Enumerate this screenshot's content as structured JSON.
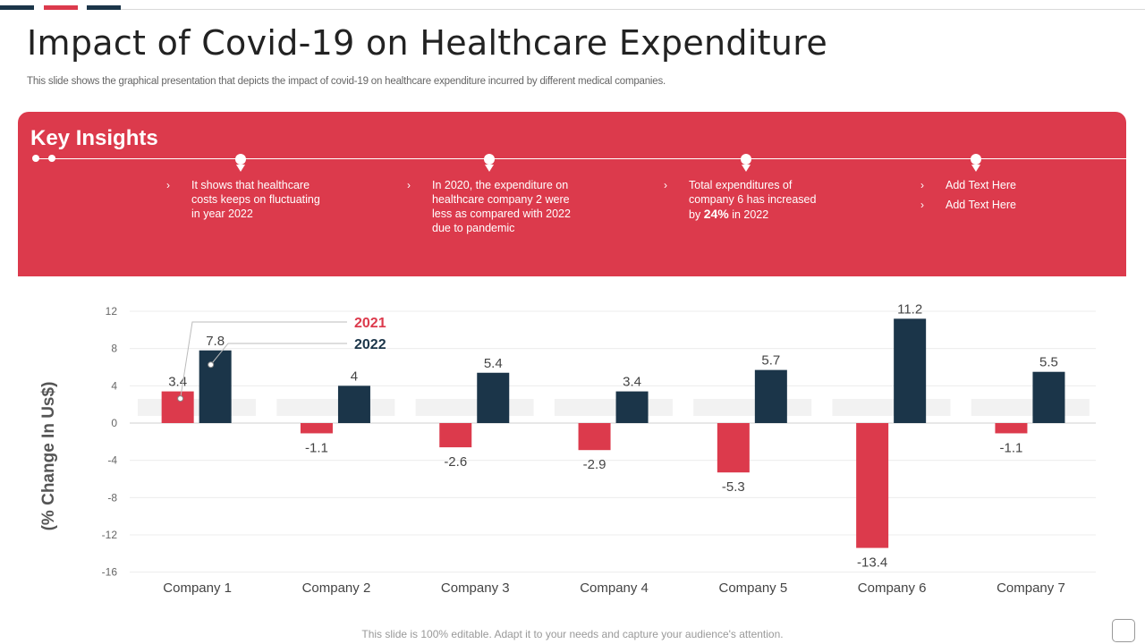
{
  "title": "Impact of Covid-19 on Healthcare Expenditure",
  "subtitle": "This slide shows the graphical presentation that depicts the impact of covid-19 on healthcare expenditure incurred by different medical companies.",
  "colors": {
    "red": "#dc3a4c",
    "navy": "#1b3549",
    "light_gray": "#f2f2f2"
  },
  "insights": {
    "heading": "Key Insights",
    "col1": {
      "text": "It shows that healthcare costs keeps on fluctuating in year 2022"
    },
    "col2": {
      "text": "In 2020, the expenditure on healthcare company 2 were less as compared with 2022 due to pandemic"
    },
    "col3": {
      "text_before": "Total expenditures of company 6 has increased by",
      "highlight": "24%",
      "text_after": "in 2022"
    },
    "col4": {
      "items": [
        "Add Text Here",
        "Add Text Here"
      ]
    },
    "chevron": "›"
  },
  "footer": "This slide is 100% editable. Adapt it to your needs and capture your audience's attention.",
  "chart_data": {
    "type": "bar",
    "title": "",
    "xlabel": "",
    "ylabel": "(% Change In Us$)",
    "categories": [
      "Company 1",
      "Company 2",
      "Company 3",
      "Company 4",
      "Company 5",
      "Company 6",
      "Company 7"
    ],
    "series": [
      {
        "name": "2021",
        "values": [
          3.4,
          -1.1,
          -2.6,
          -2.9,
          -5.3,
          -13.4,
          -1.1
        ]
      },
      {
        "name": "2022",
        "values": [
          7.8,
          4,
          5.4,
          3.4,
          5.7,
          11.2,
          5.5
        ]
      }
    ],
    "ylim": [
      -16,
      12
    ],
    "yticks": [
      12,
      8,
      4,
      0,
      -4,
      -8,
      -12,
      -16
    ],
    "grid": true,
    "legend": "top-left (callout)"
  }
}
